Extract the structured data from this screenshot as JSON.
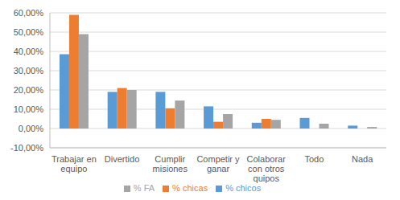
{
  "chart_data": {
    "type": "bar",
    "categories": [
      "Trabajar en equipo",
      "Divertido",
      "Cumplir misiones",
      "Competir y ganar",
      "Colaborar con otros quipos",
      "Todo",
      "Nada"
    ],
    "series": [
      {
        "name": "% chicos",
        "color": "#5b9bd5",
        "values": [
          38.5,
          19,
          19,
          11.5,
          3,
          5.5,
          1.5
        ]
      },
      {
        "name": "% chicas",
        "color": "#ed7d31",
        "values": [
          59,
          21,
          10.5,
          3.5,
          5,
          0,
          0
        ]
      },
      {
        "name": "% FA",
        "color": "#a5a5a5",
        "values": [
          49,
          20,
          14.5,
          7.5,
          4.5,
          2.5,
          0.8
        ]
      }
    ],
    "ylim": [
      -10,
      60
    ],
    "yticks": [
      {
        "value": -10,
        "label": "-10,00%"
      },
      {
        "value": 0,
        "label": "0,00%"
      },
      {
        "value": 10,
        "label": "10,00%"
      },
      {
        "value": 20,
        "label": "20,00%"
      },
      {
        "value": 30,
        "label": "30,00%"
      },
      {
        "value": 40,
        "label": "40,00%"
      },
      {
        "value": 50,
        "label": "50,00%"
      },
      {
        "value": 60,
        "label": "60,00%"
      }
    ],
    "grid": true,
    "legend": "bottom"
  }
}
